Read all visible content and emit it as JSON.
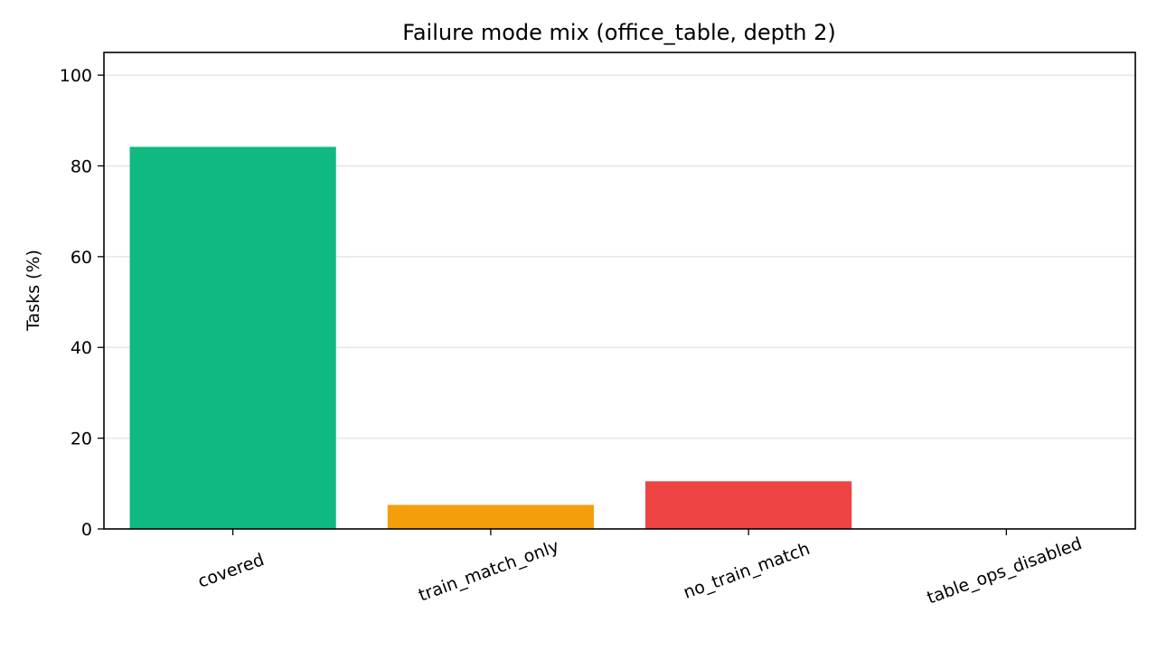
{
  "chart_data": {
    "type": "bar",
    "title": "Failure mode mix (office_table, depth 2)",
    "xlabel": "",
    "ylabel": "Tasks (%)",
    "categories": [
      "covered",
      "train_match_only",
      "no_train_match",
      "table_ops_disabled"
    ],
    "values": [
      84.2,
      5.3,
      10.5,
      0.0
    ],
    "colors": [
      "#10b981",
      "#f59e0b",
      "#ef4444",
      "#6b7280"
    ],
    "ylim": [
      0,
      105
    ],
    "yticks": [
      0,
      20,
      40,
      60,
      80,
      100
    ],
    "grid": "horizontal",
    "legend": "none"
  }
}
